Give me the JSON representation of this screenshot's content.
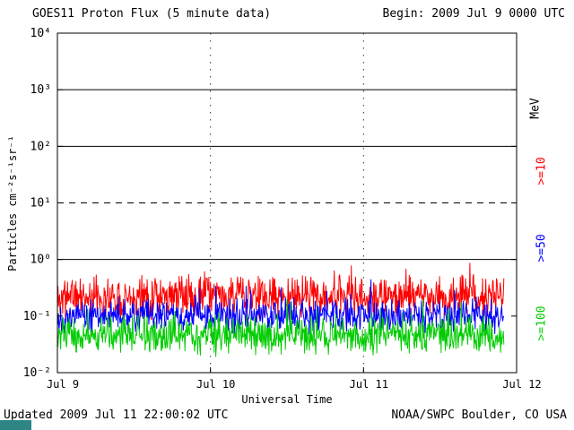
{
  "header": {
    "title": "GOES11 Proton Flux (5 minute data)",
    "begin": "Begin: 2009 Jul 9 0000 UTC"
  },
  "footer": {
    "updated": "Updated 2009 Jul 11 22:00:02 UTC",
    "credit": "NOAA/SWPC Boulder, CO USA"
  },
  "colors": {
    "axis": "#000000",
    "corner_artifact": "#2e8585"
  },
  "chart_data": {
    "type": "line",
    "title": "GOES11 Proton Flux (5 minute data)",
    "xlabel": "Universal Time",
    "ylabel": "Particles cm⁻²s⁻¹sr⁻¹",
    "right_axis_label": "MeV",
    "x_ticks": [
      "Jul 9",
      "Jul 10",
      "Jul 11",
      "Jul 12"
    ],
    "y_ticks": [
      "10⁴",
      "10³",
      "10²",
      "10¹",
      "10⁰",
      "10⁻¹",
      "10⁻²"
    ],
    "y_exponents": [
      4,
      3,
      2,
      1,
      0,
      -1,
      -2
    ],
    "ylim": [
      0.01,
      10000
    ],
    "ylim_log": [
      -2,
      4
    ],
    "y_scale": "log",
    "grid": true,
    "x_days": 3,
    "points_per_day": 288,
    "data_end_day": 2.917,
    "solid_gridline_exponents": [
      3,
      2,
      0
    ],
    "dashed_gridline_exponents": [
      1
    ],
    "vertical_gridline_days": [
      1,
      2
    ],
    "legend_position": "right-rotated",
    "series": [
      {
        "name": ">=10",
        "unit": "MeV",
        "color": "#ff0000",
        "base_log10": -0.66,
        "noise_log10": 0.3,
        "seed": 11,
        "approx_flux_range": [
          0.08,
          0.6
        ]
      },
      {
        "name": ">=50",
        "unit": "MeV",
        "color": "#0000ff",
        "base_log10": -1.0,
        "noise_log10": 0.24,
        "seed": 22,
        "approx_flux_range": [
          0.05,
          0.3
        ]
      },
      {
        "name": ">=100",
        "unit": "MeV",
        "color": "#00cc00",
        "base_log10": -1.33,
        "noise_log10": 0.28,
        "seed": 33,
        "approx_flux_range": [
          0.02,
          0.1
        ]
      }
    ]
  }
}
